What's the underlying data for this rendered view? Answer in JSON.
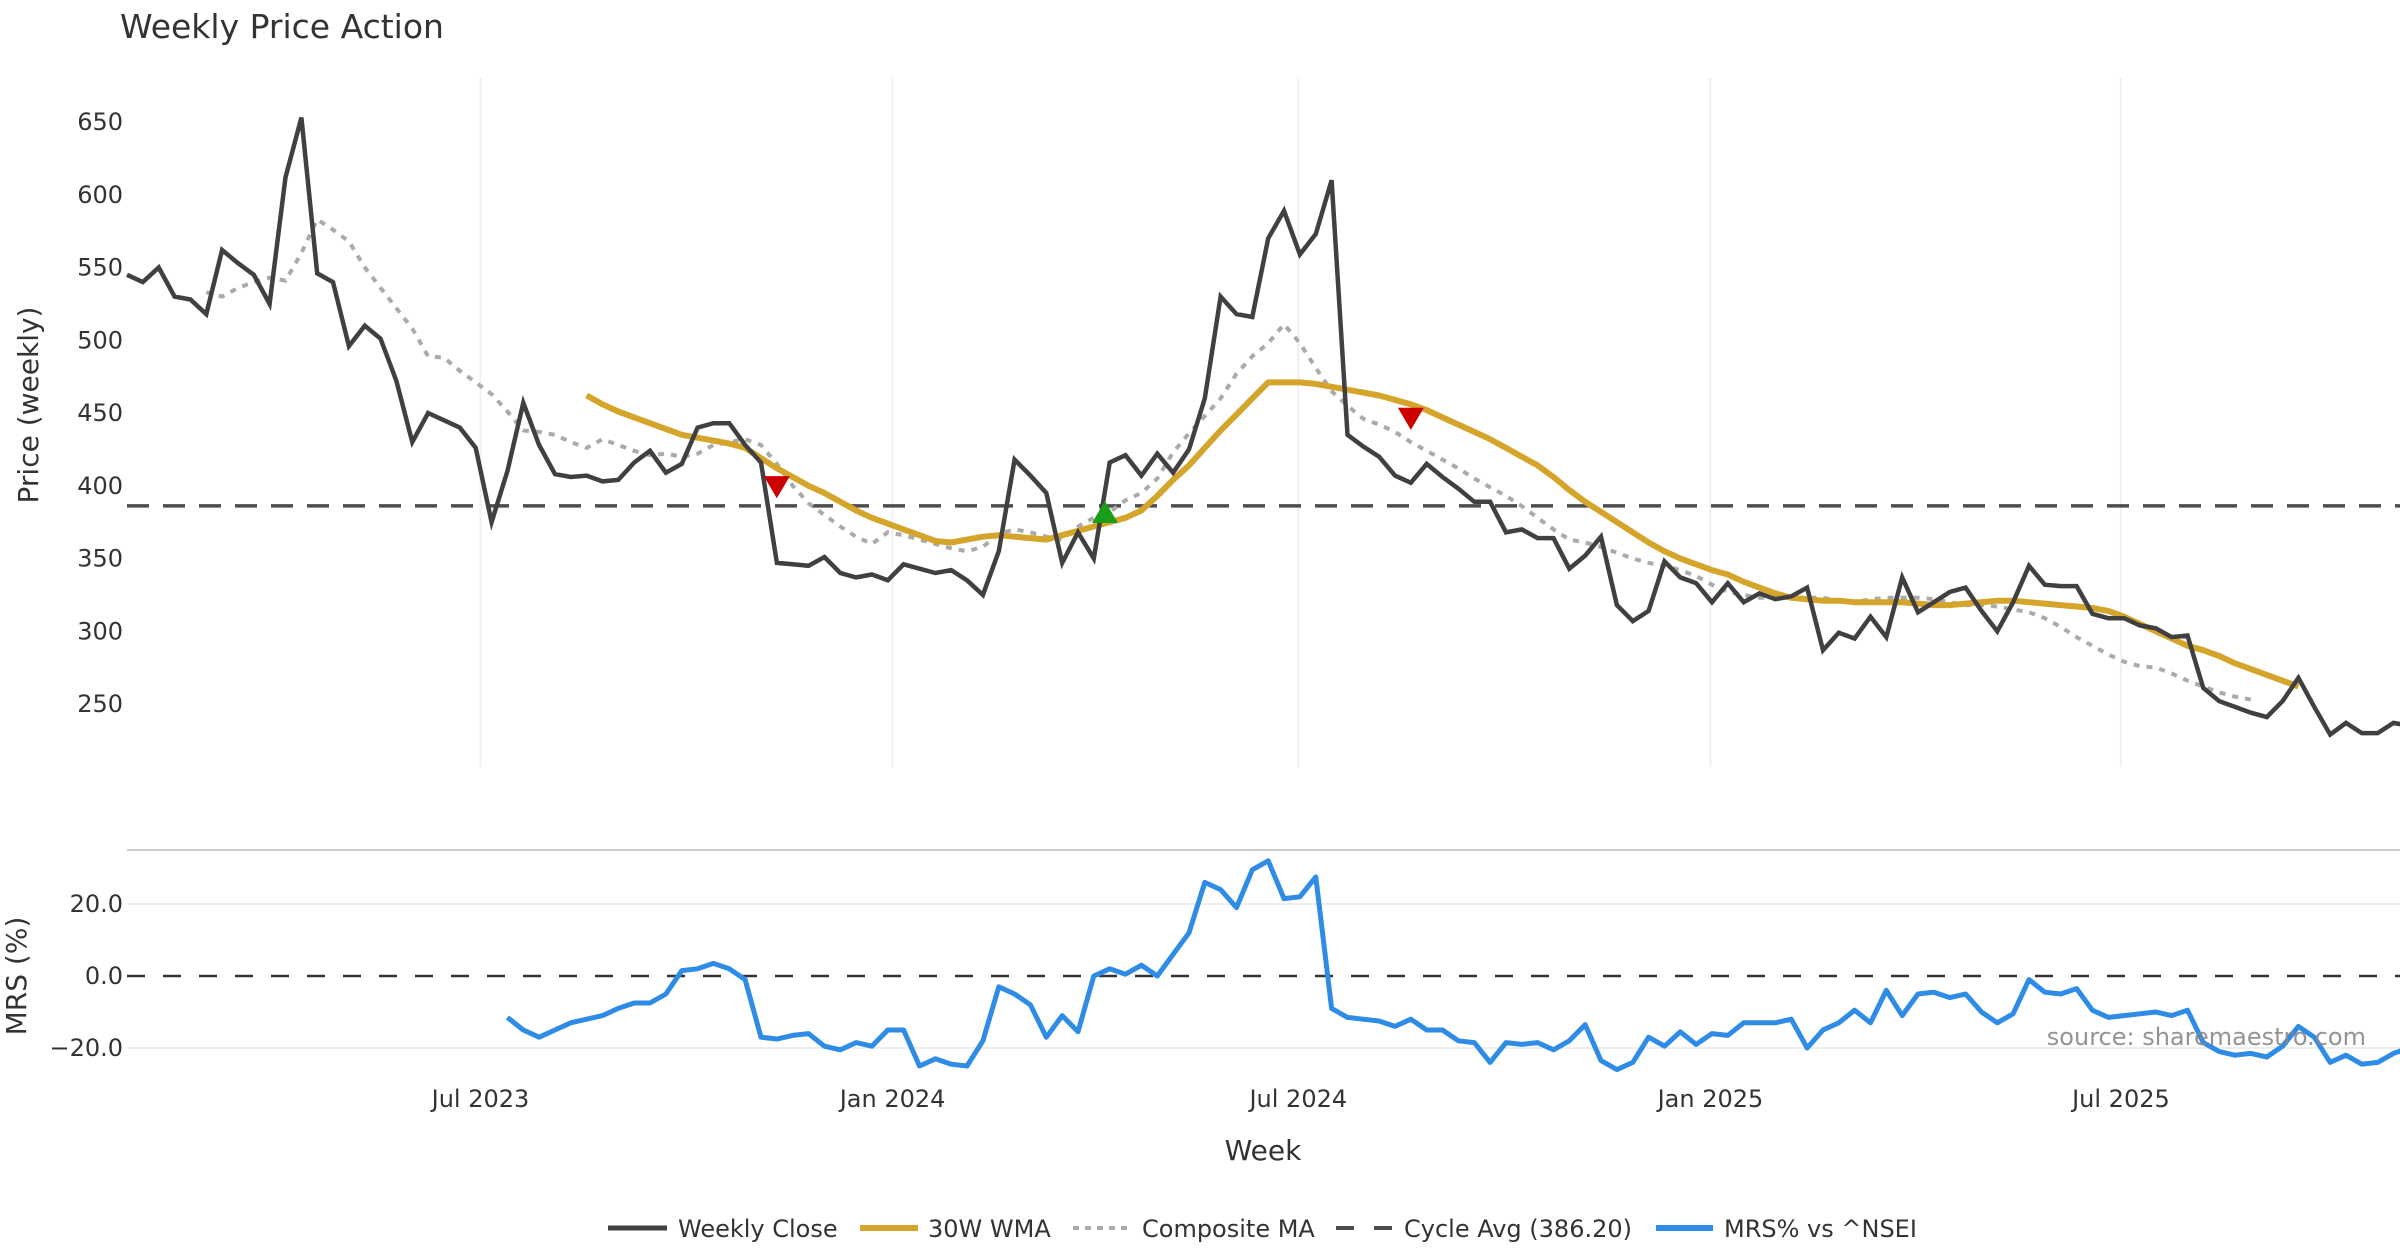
{
  "chart_data": {
    "type": "line",
    "title": "Weekly Price Action",
    "xlabel": "Week",
    "x_ticks": [
      "Jul 2023",
      "Jan 2024",
      "Jul 2024",
      "Jan 2025",
      "Jul 2025"
    ],
    "x_tick_week_index": [
      22.3,
      48.3,
      73.9,
      99.9,
      125.8
    ],
    "price_panel": {
      "ylabel": "Price (weekly)",
      "ylim": [
        207,
        670
      ],
      "y_ticks": [
        250,
        300,
        350,
        400,
        450,
        500,
        550,
        600,
        650
      ],
      "grid": "x",
      "series": [
        {
          "name": "Weekly Close",
          "color": "#404040",
          "style": "solid",
          "start_index": 0,
          "values": [
            545,
            540,
            550,
            530,
            528,
            518,
            562,
            553,
            545,
            525,
            612,
            653,
            546,
            540,
            496,
            510,
            501,
            472,
            430,
            450,
            445,
            440,
            426,
            375,
            410,
            457,
            428,
            408,
            406,
            407,
            403,
            404,
            416,
            424,
            409,
            415,
            440,
            443,
            443,
            428,
            416,
            347,
            346,
            345,
            351,
            340,
            337,
            339,
            335,
            346,
            343,
            340,
            342,
            335,
            325,
            355,
            418,
            407,
            395,
            347,
            368,
            350,
            416,
            421,
            407,
            422,
            409,
            425,
            460,
            530,
            518,
            516,
            570,
            589,
            559,
            573,
            610,
            435,
            427,
            420,
            407,
            402,
            415,
            406,
            398,
            389,
            389,
            368,
            370,
            364,
            364,
            343,
            352,
            365,
            318,
            307,
            314,
            348,
            337,
            333,
            320,
            333,
            320,
            326,
            322,
            324,
            330,
            287,
            299,
            295,
            310,
            296,
            337,
            313,
            320,
            327,
            330,
            314,
            300,
            320,
            345,
            332,
            331,
            331,
            312,
            309,
            309,
            304,
            302,
            296,
            297,
            261,
            252,
            248,
            244,
            241,
            252,
            268,
            248,
            229,
            237,
            230,
            230,
            237,
            235
          ]
        },
        {
          "name": "30W WMA",
          "color": "#D4A52A",
          "style": "solid",
          "start_index": 29,
          "values": [
            462,
            456,
            451,
            447,
            443,
            439,
            435,
            433,
            431,
            429,
            426,
            419,
            412,
            406,
            400,
            395,
            389,
            383,
            378,
            374,
            370,
            366,
            362,
            361,
            363,
            365,
            366,
            365,
            364,
            363,
            366,
            369,
            372,
            375,
            378,
            383,
            393,
            404,
            414,
            426,
            438,
            449,
            460,
            471,
            471,
            471,
            470,
            468,
            466,
            464,
            462,
            459,
            456,
            452,
            447,
            442,
            437,
            432,
            426,
            420,
            414,
            406,
            397,
            389,
            382,
            375,
            368,
            361,
            355,
            350,
            346,
            342,
            339,
            334,
            330,
            326,
            323,
            322,
            321,
            321,
            320,
            320,
            320,
            320,
            319,
            318,
            318,
            319,
            320,
            321,
            321,
            320,
            319,
            318,
            317,
            316,
            314,
            310,
            305,
            300,
            295,
            290,
            287,
            283,
            278,
            274,
            270,
            266,
            262
          ]
        },
        {
          "name": "Composite MA",
          "color": "#AAAAAA",
          "style": "dotted",
          "start_index": 5,
          "values": [
            533,
            530,
            536,
            540,
            543,
            541,
            560,
            583,
            576,
            568,
            550,
            536,
            522,
            508,
            489,
            488,
            479,
            471,
            463,
            451,
            438,
            437,
            435,
            430,
            426,
            432,
            428,
            424,
            421,
            422,
            420,
            422,
            428,
            430,
            432,
            428,
            415,
            400,
            388,
            380,
            372,
            365,
            360,
            368,
            366,
            363,
            360,
            357,
            355,
            358,
            367,
            370,
            368,
            365,
            363,
            372,
            378,
            382,
            390,
            395,
            405,
            423,
            436,
            448,
            460,
            477,
            489,
            498,
            511,
            498,
            481,
            465,
            455,
            446,
            442,
            437,
            430,
            424,
            418,
            412,
            405,
            399,
            393,
            386,
            378,
            370,
            363,
            361,
            358,
            354,
            350,
            347,
            345,
            342,
            338,
            332,
            327,
            325,
            323,
            323,
            323,
            323,
            323,
            321,
            320,
            322,
            323,
            323,
            323,
            322,
            320,
            318,
            318,
            317,
            315,
            313,
            309,
            303,
            296,
            290,
            284,
            279,
            276,
            275,
            271,
            266,
            262,
            258,
            255,
            253
          ]
        },
        {
          "name": "Cycle Avg (386.20)",
          "color": "#4D4D4D",
          "style": "dashed",
          "constant": 386.2
        }
      ],
      "markers": [
        {
          "type": "sell",
          "shape": "triangle-down",
          "color": "#CC0000",
          "week_index": 41,
          "value": 399
        },
        {
          "type": "buy",
          "shape": "triangle-up",
          "color": "#1A9E1A",
          "week_index": 61.7,
          "value": 382
        },
        {
          "type": "sell",
          "shape": "triangle-down",
          "color": "#CC0000",
          "week_index": 81,
          "value": 446
        }
      ]
    },
    "mrs_panel": {
      "ylabel": "MRS (%)",
      "ylim": [
        -27,
        35
      ],
      "y_ticks": [
        20.0,
        0.0,
        -20.0
      ],
      "y_tick_labels": [
        "20.0",
        "0.0",
        "−20.0"
      ],
      "zero_line": "dashed",
      "series": [
        {
          "name": "MRS% vs ^NSEI",
          "color": "#2E8BE6",
          "start_index": 24,
          "values": [
            -11.5,
            -15,
            -17,
            -15,
            -13,
            -12,
            -11,
            -9,
            -7.5,
            -7.5,
            -5,
            1.5,
            2,
            3.5,
            2,
            -1,
            -17,
            -17.5,
            -16.5,
            -16,
            -19.5,
            -20.5,
            -18.5,
            -19.5,
            -15,
            -15,
            -25,
            -23,
            -24.5,
            -25,
            -18,
            -3,
            -5,
            -8,
            -17,
            -11,
            -15.5,
            0,
            2,
            0.5,
            3,
            0,
            6,
            12,
            26,
            24,
            19,
            29.5,
            32,
            21.5,
            22,
            27.5,
            -9,
            -11.5,
            -12,
            -12.5,
            -14,
            -12,
            -15,
            -15,
            -18,
            -18.5,
            -24,
            -18.5,
            -19,
            -18.5,
            -20.5,
            -18,
            -13.5,
            -23.5,
            -26,
            -24,
            -17,
            -19.5,
            -15.5,
            -19,
            -16,
            -16.5,
            -13,
            -13,
            -13,
            -12,
            -20,
            -15,
            -13,
            -9.5,
            -13,
            -4,
            -11,
            -5,
            -4.5,
            -6,
            -5,
            -10,
            -13,
            -10.5,
            -1,
            -4.5,
            -5,
            -3.5,
            -9.5,
            -11.5,
            -11,
            -10.5,
            -10,
            -11,
            -9.5,
            -18.5,
            -21,
            -22,
            -21.5,
            -22.5,
            -19.5,
            -14,
            -17,
            -24,
            -22,
            -24.5,
            -24,
            -21.5,
            -20
          ]
        }
      ]
    },
    "legend": {
      "placement": "bottom-center",
      "entries": [
        "Weekly Close",
        "30W WMA",
        "Composite MA",
        "Cycle Avg (386.20)",
        "MRS% vs ^NSEI"
      ]
    },
    "annotation": "source: sharemaestro.com"
  }
}
